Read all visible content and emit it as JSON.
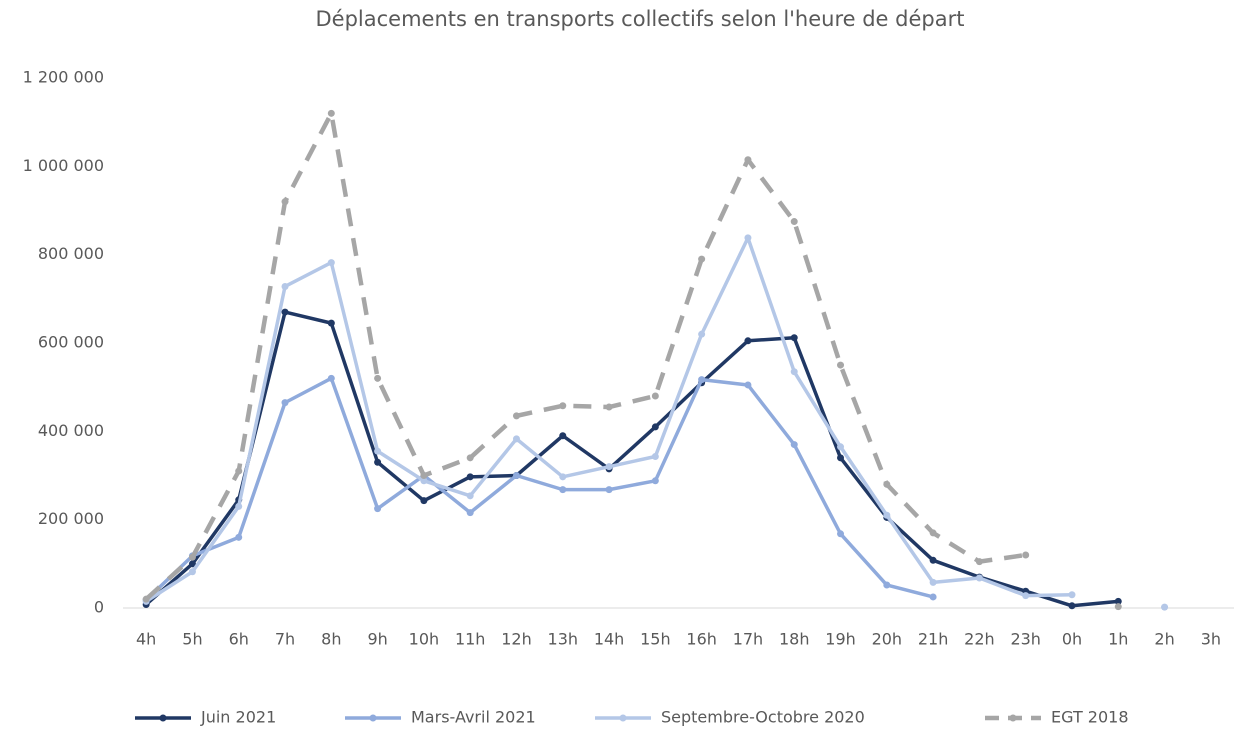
{
  "chart_data": {
    "type": "line",
    "title": "Déplacements en transports collectifs selon l'heure de départ",
    "categories": [
      "4h",
      "5h",
      "6h",
      "7h",
      "8h",
      "9h",
      "10h",
      "11h",
      "12h",
      "13h",
      "14h",
      "15h",
      "16h",
      "17h",
      "18h",
      "19h",
      "20h",
      "21h",
      "22h",
      "23h",
      "0h",
      "1h",
      "2h",
      "3h"
    ],
    "series": [
      {
        "name": "Juin 2021",
        "color": "#203864",
        "line_style": "solid",
        "values": [
          8000,
          100000,
          245000,
          670000,
          645000,
          330000,
          243000,
          297000,
          300000,
          390000,
          315000,
          410000,
          510000,
          605000,
          612000,
          340000,
          205000,
          108000,
          70000,
          38000,
          5000,
          15000,
          null,
          null
        ]
      },
      {
        "name": "Mars-Avril 2021",
        "color": "#8faadc",
        "line_style": "solid",
        "values": [
          18000,
          118000,
          160000,
          465000,
          520000,
          225000,
          300000,
          216000,
          300000,
          268000,
          268000,
          288000,
          517000,
          505000,
          370000,
          168000,
          52000,
          25000,
          null,
          null,
          null,
          null,
          null,
          null
        ]
      },
      {
        "name": "Septembre-Octobre 2020",
        "color": "#b4c7e7",
        "line_style": "solid",
        "values": [
          15000,
          82000,
          230000,
          728000,
          782000,
          355000,
          288000,
          254000,
          383000,
          297000,
          320000,
          343000,
          620000,
          838000,
          535000,
          365000,
          210000,
          58000,
          68000,
          28000,
          30000,
          null,
          2000,
          null
        ]
      },
      {
        "name": "EGT 2018",
        "color": "#a6a6a6",
        "line_style": "dashed",
        "values": [
          20000,
          115000,
          310000,
          920000,
          1120000,
          520000,
          300000,
          340000,
          435000,
          458000,
          455000,
          480000,
          790000,
          1015000,
          875000,
          550000,
          280000,
          170000,
          105000,
          120000,
          null,
          3000,
          null,
          null
        ]
      }
    ],
    "ylim": [
      0,
      1200000
    ],
    "yticks": [
      0,
      {
        "value": 200000,
        "label": "200 000"
      },
      {
        "value": 400000,
        "label": "400 000"
      },
      {
        "value": 600000,
        "label": "600 000"
      },
      {
        "value": 800000,
        "label": "800 000"
      },
      {
        "value": 1000000,
        "label": "1 000 000"
      },
      {
        "value": 1200000,
        "label": "1 200 000"
      }
    ],
    "grid": false,
    "legend": "bottom"
  }
}
